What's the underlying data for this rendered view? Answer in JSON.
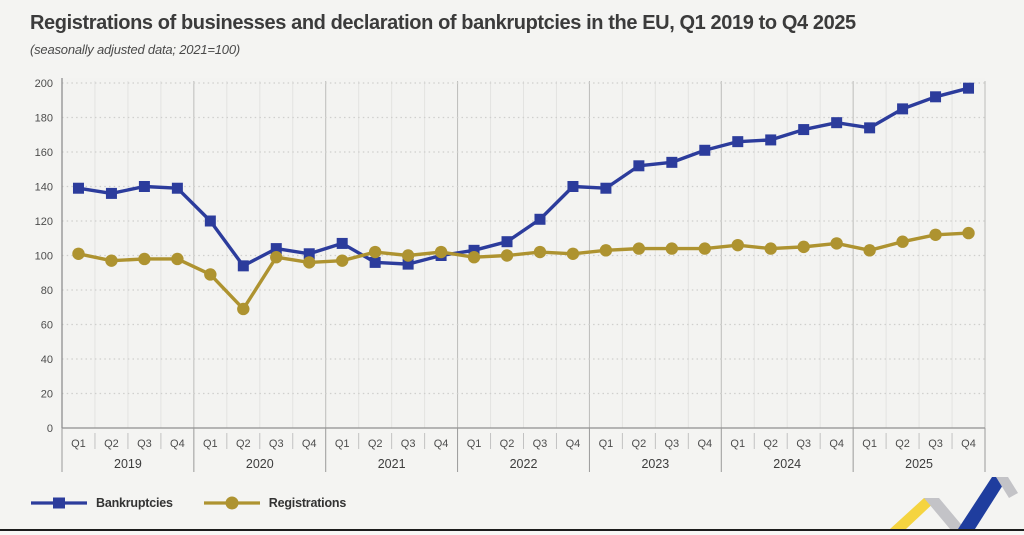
{
  "header": {
    "title": "Registrations of businesses and declaration of bankruptcies in the EU, Q1 2019 to Q4 2025",
    "subtitle": "(seasonally adjusted data; 2021=100)"
  },
  "chart_data": {
    "type": "line",
    "title": "Registrations of businesses and declaration of bankruptcies in the EU, Q1 2019 to Q4 2025",
    "subtitle": "(seasonally adjusted data; 2021=100)",
    "years": [
      "2019",
      "2020",
      "2021",
      "2022",
      "2023",
      "2024",
      "2025"
    ],
    "quarters_per_year": [
      "Q1",
      "Q2",
      "Q3",
      "Q4"
    ],
    "categories": [
      "Q1 2019",
      "Q2 2019",
      "Q3 2019",
      "Q4 2019",
      "Q1 2020",
      "Q2 2020",
      "Q3 2020",
      "Q4 2020",
      "Q1 2021",
      "Q2 2021",
      "Q3 2021",
      "Q4 2021",
      "Q1 2022",
      "Q2 2022",
      "Q3 2022",
      "Q4 2022",
      "Q1 2023",
      "Q2 2023",
      "Q3 2023",
      "Q4 2023",
      "Q1 2024",
      "Q2 2024",
      "Q3 2024",
      "Q4 2024",
      "Q1 2025",
      "Q2 2025",
      "Q3 2025",
      "Q4 2025"
    ],
    "series": [
      {
        "name": "Bankruptcies",
        "color": "#2c3c9c",
        "marker": "square",
        "values": [
          139,
          136,
          140,
          139,
          120,
          94,
          104,
          101,
          107,
          96,
          95,
          100,
          103,
          108,
          121,
          140,
          139,
          152,
          154,
          161,
          166,
          167,
          173,
          177,
          174,
          185,
          192,
          197
        ]
      },
      {
        "name": "Registrations",
        "color": "#ae9330",
        "marker": "circle",
        "values": [
          101,
          97,
          98,
          98,
          89,
          69,
          99,
          96,
          97,
          102,
          100,
          102,
          99,
          100,
          102,
          101,
          103,
          104,
          104,
          104,
          106,
          104,
          105,
          107,
          103,
          108,
          112,
          113
        ]
      }
    ],
    "ylim": [
      0,
      200
    ],
    "y_ticks": [
      0,
      20,
      40,
      60,
      80,
      100,
      120,
      140,
      160,
      180,
      200
    ],
    "grid": true,
    "legend_position": "bottom-left"
  },
  "logo": {
    "name": "eurostat-logo",
    "colors": {
      "yellow": "#f5d440",
      "gray": "#c3c3c7",
      "blue": "#1f3d9e"
    }
  }
}
